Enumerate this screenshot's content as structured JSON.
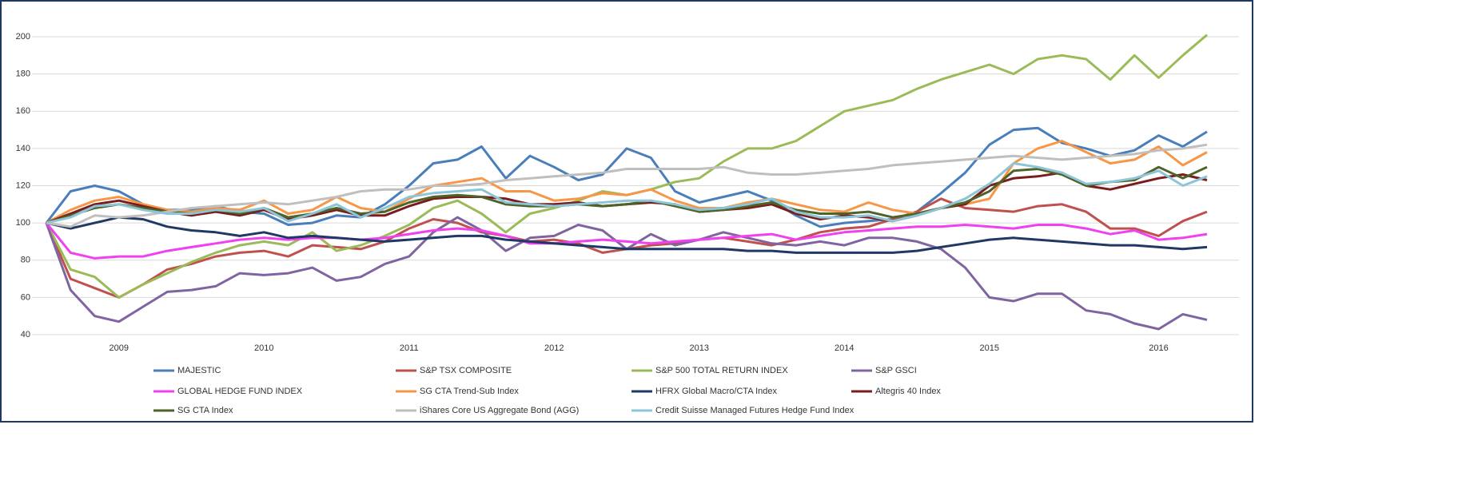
{
  "chart_data": {
    "type": "line",
    "categories": [
      null,
      null,
      null,
      "2009",
      null,
      null,
      null,
      null,
      null,
      "2010",
      null,
      null,
      null,
      null,
      null,
      "2011",
      null,
      null,
      null,
      null,
      null,
      "2012",
      null,
      null,
      null,
      null,
      null,
      "2013",
      null,
      null,
      null,
      null,
      null,
      "2014",
      null,
      null,
      null,
      null,
      null,
      "2015",
      null,
      null,
      null,
      null,
      null,
      null,
      "2016",
      null,
      null
    ],
    "ylim": [
      40,
      200
    ],
    "yticks": [
      40,
      60,
      80,
      100,
      120,
      140,
      160,
      180,
      200
    ],
    "grid": true,
    "legend": "bottom",
    "series": [
      {
        "name": "MAJESTIC",
        "color": "#4a7ebb",
        "values": [
          100,
          117,
          120,
          117,
          110,
          107,
          107,
          109,
          106,
          105,
          99,
          100,
          104,
          103,
          110,
          120,
          132,
          134,
          141,
          124,
          136,
          130,
          123,
          126,
          140,
          135,
          117,
          111,
          114,
          117,
          112,
          104,
          98,
          100,
          101,
          102,
          106,
          116,
          127,
          142,
          150,
          151,
          143,
          140,
          136,
          139,
          147,
          141,
          149
        ]
      },
      {
        "name": "S&P TSX COMPOSITE",
        "color": "#c0504d",
        "values": [
          100,
          70,
          65,
          60,
          67,
          75,
          78,
          82,
          84,
          85,
          82,
          88,
          87,
          86,
          90,
          97,
          102,
          100,
          95,
          93,
          90,
          91,
          89,
          84,
          86,
          88,
          89,
          91,
          92,
          90,
          88,
          91,
          95,
          97,
          98,
          102,
          106,
          113,
          108,
          107,
          106,
          109,
          110,
          106,
          97,
          97,
          93,
          101,
          106
        ]
      },
      {
        "name": "S&P 500 TOTAL RETURN INDEX",
        "color": "#9bbb59",
        "values": [
          100,
          75,
          71,
          60,
          67,
          73,
          79,
          84,
          88,
          90,
          88,
          95,
          85,
          88,
          93,
          99,
          108,
          112,
          105,
          95,
          105,
          108,
          112,
          117,
          115,
          118,
          122,
          124,
          133,
          140,
          140,
          144,
          152,
          160,
          163,
          166,
          172,
          177,
          181,
          185,
          180,
          188,
          190,
          188,
          177,
          190,
          178,
          190,
          201
        ]
      },
      {
        "name": "S&P GSCI",
        "color": "#8064a2",
        "values": [
          100,
          64,
          50,
          47,
          55,
          63,
          64,
          66,
          73,
          72,
          73,
          76,
          69,
          71,
          78,
          82,
          95,
          103,
          96,
          85,
          92,
          93,
          99,
          96,
          86,
          94,
          88,
          91,
          95,
          92,
          89,
          88,
          90,
          88,
          92,
          92,
          90,
          86,
          76,
          60,
          58,
          62,
          62,
          53,
          51,
          46,
          43,
          51,
          48
        ]
      },
      {
        "name": "GLOBAL HEDGE FUND INDEX",
        "color": "#f040f0",
        "values": [
          100,
          84,
          81,
          82,
          82,
          85,
          87,
          89,
          91,
          92,
          91,
          92,
          92,
          91,
          92,
          94,
          96,
          97,
          96,
          93,
          89,
          89,
          90,
          91,
          90,
          89,
          90,
          91,
          92,
          93,
          94,
          91,
          93,
          95,
          96,
          97,
          98,
          98,
          99,
          98,
          97,
          99,
          99,
          97,
          94,
          96,
          91,
          92,
          94
        ]
      },
      {
        "name": "SG CTA Trend-Sub Index",
        "color": "#f79646",
        "values": [
          100,
          107,
          112,
          114,
          110,
          107,
          106,
          108,
          107,
          112,
          105,
          107,
          114,
          108,
          106,
          113,
          120,
          122,
          124,
          117,
          117,
          112,
          113,
          116,
          115,
          118,
          112,
          108,
          108,
          111,
          113,
          110,
          107,
          106,
          111,
          107,
          105,
          108,
          110,
          113,
          132,
          140,
          144,
          138,
          132,
          134,
          141,
          131,
          138
        ]
      },
      {
        "name": "HFRX Global Macro/CTA Index",
        "color": "#1f3864",
        "values": [
          100,
          97,
          100,
          103,
          102,
          98,
          96,
          95,
          93,
          95,
          92,
          93,
          92,
          91,
          90,
          91,
          92,
          93,
          93,
          91,
          90,
          89,
          88,
          87,
          86,
          86,
          86,
          86,
          86,
          85,
          85,
          84,
          84,
          84,
          84,
          84,
          85,
          87,
          89,
          91,
          92,
          91,
          90,
          89,
          88,
          88,
          87,
          86,
          87
        ]
      },
      {
        "name": "Altegris 40 Index",
        "color": "#7b1c1c",
        "values": [
          100,
          105,
          110,
          112,
          109,
          106,
          104,
          106,
          104,
          107,
          102,
          104,
          107,
          104,
          104,
          109,
          113,
          114,
          114,
          113,
          110,
          110,
          111,
          109,
          110,
          111,
          110,
          106,
          107,
          108,
          110,
          105,
          102,
          104,
          103,
          101,
          104,
          108,
          110,
          120,
          124,
          125,
          127,
          120,
          118,
          121,
          124,
          126,
          123
        ]
      },
      {
        "name": "SG CTA Index",
        "color": "#4f6228",
        "values": [
          100,
          104,
          108,
          110,
          108,
          106,
          105,
          107,
          105,
          108,
          103,
          105,
          108,
          105,
          106,
          111,
          114,
          115,
          114,
          110,
          109,
          109,
          110,
          109,
          110,
          112,
          109,
          106,
          107,
          109,
          111,
          107,
          105,
          105,
          106,
          103,
          105,
          108,
          111,
          117,
          128,
          129,
          126,
          120,
          122,
          123,
          130,
          124,
          130
        ]
      },
      {
        "name": "iShares Core US Aggregate Bond (AGG)",
        "color": "#bfbfbf",
        "values": [
          100,
          98,
          104,
          103,
          104,
          106,
          108,
          109,
          110,
          111,
          110,
          112,
          114,
          117,
          118,
          118,
          120,
          120,
          121,
          123,
          124,
          125,
          126,
          127,
          129,
          129,
          129,
          129,
          130,
          127,
          126,
          126,
          127,
          128,
          129,
          131,
          132,
          133,
          134,
          135,
          136,
          135,
          134,
          135,
          136,
          137,
          139,
          140,
          142
        ]
      },
      {
        "name": "Credit Suisse Managed Futures Hedge Fund Index",
        "color": "#8cc4d8",
        "values": [
          100,
          103,
          109,
          110,
          107,
          105,
          105,
          107,
          106,
          108,
          101,
          105,
          110,
          103,
          108,
          114,
          116,
          117,
          118,
          111,
          110,
          109,
          110,
          111,
          112,
          112,
          110,
          107,
          108,
          110,
          113,
          106,
          103,
          103,
          104,
          101,
          104,
          108,
          113,
          121,
          132,
          130,
          127,
          121,
          122,
          124,
          128,
          120,
          125
        ]
      }
    ]
  }
}
